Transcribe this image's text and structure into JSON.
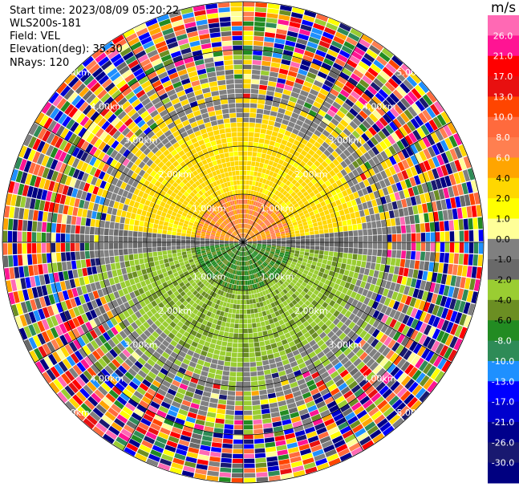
{
  "header": {
    "start_time": "Start time: 2023/08/09 05:20:22",
    "instrument": "WLS200s-181",
    "field": "Field: VEL",
    "elevation": "Elevation(deg): 35.30",
    "nrays": "NRays: 120"
  },
  "colorbar": {
    "unit": "m/s",
    "ticks": [
      "26.0",
      "21.0",
      "17.0",
      "13.0",
      "10.0",
      "8.0",
      "6.0",
      "4.0",
      "2.0",
      "1.0",
      "0.0",
      "-1.0",
      "-2.0",
      "-4.0",
      "-6.0",
      "-8.0",
      "-10.0",
      "-13.0",
      "-17.0",
      "-21.0",
      "-26.0",
      "-30.0"
    ],
    "colors": [
      "#ff69b4",
      "#ff1493",
      "#ff0000",
      "#e81010",
      "#ff4500",
      "#ff6a3d",
      "#ff7f50",
      "#ffa500",
      "#ffd700",
      "#ffff00",
      "#ffff99",
      "#808080",
      "#696969",
      "#9acd32",
      "#6b8e23",
      "#228b22",
      "#2e8b57",
      "#1e90ff",
      "#0000ff",
      "#0000cd",
      "#00008b",
      "#191970",
      "#000080"
    ]
  },
  "chart_data": {
    "type": "heatmap",
    "projection": "polar (PPI)",
    "field": "VEL",
    "unit": "m/s",
    "n_rays": 120,
    "elevation_deg": 35.3,
    "range_rings_km": [
      1.0,
      2.0,
      3.0,
      4.0,
      5.0
    ],
    "range_ring_labels": [
      "1.00km",
      "2.00km",
      "3.00km",
      "4.00km",
      "5.00km"
    ],
    "spoke_angles_deg": [
      0,
      30,
      60,
      90,
      120,
      150,
      180,
      210,
      240,
      270,
      300,
      330
    ],
    "max_range_km": 5.0,
    "pattern": "Positive velocities (yellow/orange, ~1 to 4 m/s) in the northern half within ~2.8 km, near-zero (gray) along the east-west line, negative velocities (green, ~-1 to -6 m/s) in the southern half within ~2.8 km; beyond ~2.8 km the returns are noisy with mixed values across the full color scale."
  }
}
